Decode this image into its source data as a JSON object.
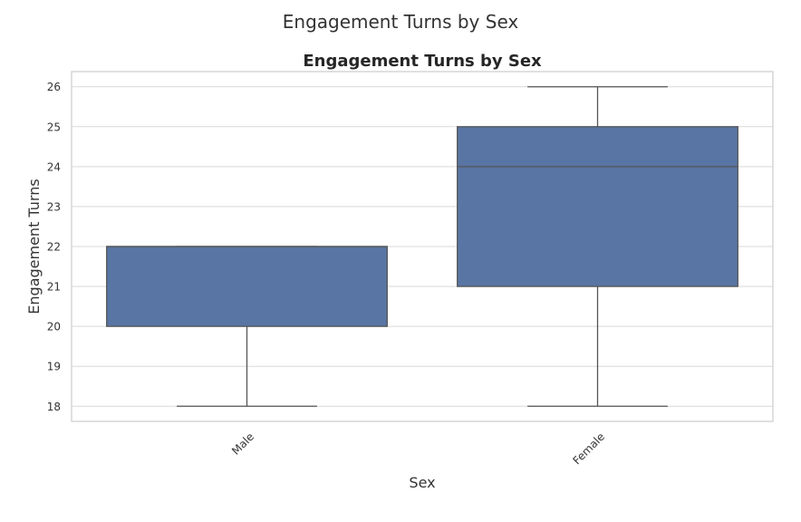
{
  "figure": {
    "suptitle": "Engagement Turns by Sex"
  },
  "chart_data": {
    "type": "box",
    "title": "Engagement Turns by Sex",
    "xlabel": "Sex",
    "ylabel": "Engagement Turns",
    "categories": [
      "Male",
      "Female"
    ],
    "boxes": [
      {
        "category": "Male",
        "whisker_low": 18,
        "q1": 20,
        "median": 22,
        "q3": 22,
        "whisker_high": 22
      },
      {
        "category": "Female",
        "whisker_low": 18,
        "q1": 21,
        "median": 24,
        "q3": 25,
        "whisker_high": 26
      }
    ],
    "ylim": [
      17.62,
      26.38
    ],
    "yticks": [
      18,
      19,
      20,
      21,
      22,
      23,
      24,
      25,
      26
    ],
    "grid": true,
    "box_color": "#5875a4",
    "line_color": "#555555",
    "grid_color": "#d9d9d9",
    "frame_color": "#cccccc",
    "text_color": "#333333"
  }
}
